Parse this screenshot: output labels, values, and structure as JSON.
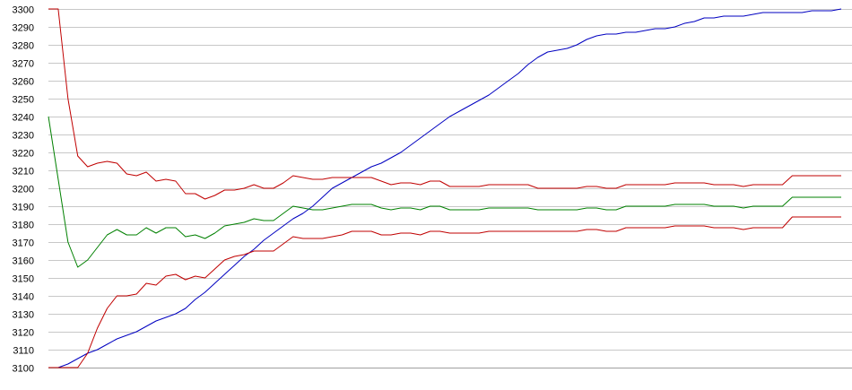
{
  "chart_data": {
    "type": "line",
    "title": "",
    "xlabel": "",
    "ylabel": "",
    "ylim": [
      3100,
      3300
    ],
    "xlim": [
      0,
      81
    ],
    "yticks": [
      3100,
      3110,
      3120,
      3130,
      3140,
      3150,
      3160,
      3170,
      3180,
      3190,
      3200,
      3210,
      3220,
      3230,
      3240,
      3250,
      3260,
      3270,
      3280,
      3290,
      3300
    ],
    "grid": true,
    "legend": "none",
    "x": [
      0,
      1,
      2,
      3,
      4,
      5,
      6,
      7,
      8,
      9,
      10,
      11,
      12,
      13,
      14,
      15,
      16,
      17,
      18,
      19,
      20,
      21,
      22,
      23,
      24,
      25,
      26,
      27,
      28,
      29,
      30,
      31,
      32,
      33,
      34,
      35,
      36,
      37,
      38,
      39,
      40,
      41,
      42,
      43,
      44,
      45,
      46,
      47,
      48,
      49,
      50,
      51,
      52,
      53,
      54,
      55,
      56,
      57,
      58,
      59,
      60,
      61,
      62,
      63,
      64,
      65,
      66,
      67,
      68,
      69,
      70,
      71,
      72,
      73,
      74,
      75,
      76,
      77,
      78,
      79,
      80,
      81
    ],
    "series": [
      {
        "color": "#0000c0",
        "values": [
          3100,
          3100,
          3102,
          3105,
          3108,
          3110,
          3113,
          3116,
          3118,
          3120,
          3123,
          3126,
          3128,
          3130,
          3133,
          3138,
          3142,
          3147,
          3152,
          3157,
          3162,
          3166,
          3171,
          3175,
          3179,
          3183,
          3186,
          3190,
          3195,
          3200,
          3203,
          3206,
          3209,
          3212,
          3214,
          3217,
          3220,
          3224,
          3228,
          3232,
          3236,
          3240,
          3243,
          3246,
          3249,
          3252,
          3256,
          3260,
          3264,
          3269,
          3273,
          3276,
          3277,
          3278,
          3280,
          3283,
          3285,
          3286,
          3286,
          3287,
          3287,
          3288,
          3289,
          3289,
          3290,
          3292,
          3293,
          3295,
          3295,
          3296,
          3296,
          3296,
          3297,
          3298,
          3298,
          3298,
          3298,
          3298,
          3299,
          3299,
          3299,
          3300
        ]
      },
      {
        "color": "#c00000",
        "values": [
          3300,
          3300,
          3250,
          3218,
          3212,
          3214,
          3215,
          3214,
          3208,
          3207,
          3209,
          3204,
          3205,
          3204,
          3197,
          3197,
          3194,
          3196,
          3199,
          3199,
          3200,
          3202,
          3200,
          3200,
          3203,
          3207,
          3206,
          3205,
          3205,
          3206,
          3206,
          3206,
          3206,
          3206,
          3204,
          3202,
          3203,
          3203,
          3202,
          3204,
          3204,
          3201,
          3201,
          3201,
          3201,
          3202,
          3202,
          3202,
          3202,
          3202,
          3200,
          3200,
          3200,
          3200,
          3200,
          3201,
          3201,
          3200,
          3200,
          3202,
          3202,
          3202,
          3202,
          3202,
          3203,
          3203,
          3203,
          3203,
          3202,
          3202,
          3202,
          3201,
          3202,
          3202,
          3202,
          3202,
          3207,
          3207,
          3207,
          3207,
          3207,
          3207
        ]
      },
      {
        "color": "#008000",
        "values": [
          3240,
          3205,
          3170,
          3156,
          3160,
          3167,
          3174,
          3177,
          3174,
          3174,
          3178,
          3175,
          3178,
          3178,
          3173,
          3174,
          3172,
          3175,
          3179,
          3180,
          3181,
          3183,
          3182,
          3182,
          3186,
          3190,
          3189,
          3188,
          3188,
          3189,
          3190,
          3191,
          3191,
          3191,
          3189,
          3188,
          3189,
          3189,
          3188,
          3190,
          3190,
          3188,
          3188,
          3188,
          3188,
          3189,
          3189,
          3189,
          3189,
          3189,
          3188,
          3188,
          3188,
          3188,
          3188,
          3189,
          3189,
          3188,
          3188,
          3190,
          3190,
          3190,
          3190,
          3190,
          3191,
          3191,
          3191,
          3191,
          3190,
          3190,
          3190,
          3189,
          3190,
          3190,
          3190,
          3190,
          3195,
          3195,
          3195,
          3195,
          3195,
          3195
        ]
      },
      {
        "color": "#c00000",
        "values": [
          3100,
          3100,
          3100,
          3100,
          3108,
          3122,
          3133,
          3140,
          3140,
          3141,
          3147,
          3146,
          3151,
          3152,
          3149,
          3151,
          3150,
          3155,
          3160,
          3162,
          3163,
          3165,
          3165,
          3165,
          3169,
          3173,
          3172,
          3172,
          3172,
          3173,
          3174,
          3176,
          3176,
          3176,
          3174,
          3174,
          3175,
          3175,
          3174,
          3176,
          3176,
          3175,
          3175,
          3175,
          3175,
          3176,
          3176,
          3176,
          3176,
          3176,
          3176,
          3176,
          3176,
          3176,
          3176,
          3177,
          3177,
          3176,
          3176,
          3178,
          3178,
          3178,
          3178,
          3178,
          3179,
          3179,
          3179,
          3179,
          3178,
          3178,
          3178,
          3177,
          3178,
          3178,
          3178,
          3178,
          3184,
          3184,
          3184,
          3184,
          3184,
          3184
        ]
      }
    ]
  }
}
